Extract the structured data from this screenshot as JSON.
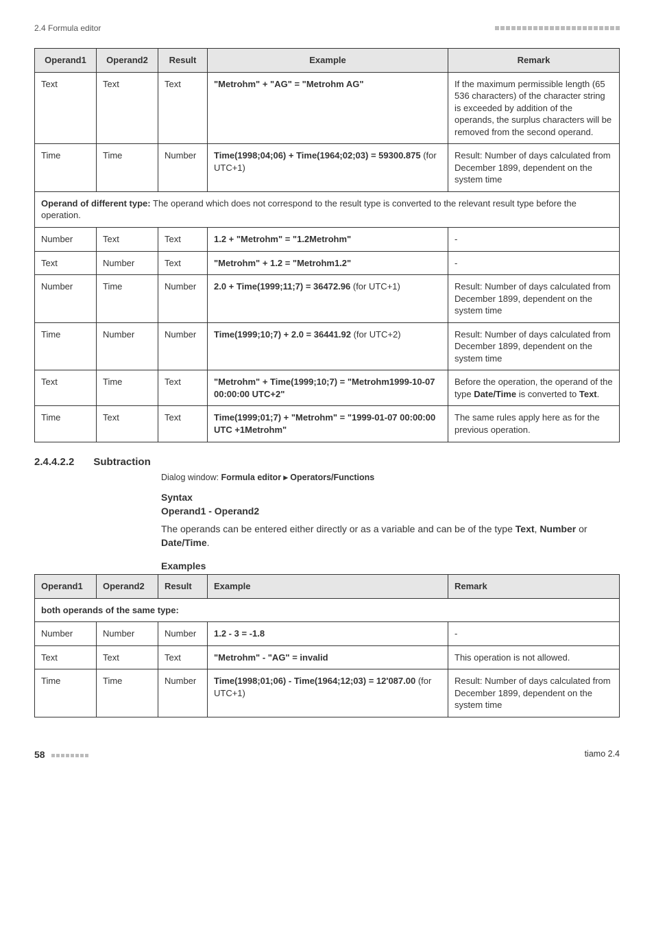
{
  "header": {
    "section_label": "2.4 Formula editor",
    "dot_count": 23
  },
  "table1": {
    "cols": {
      "c1": "Operand1",
      "c2": "Operand2",
      "c3": "Result",
      "c4": "Example",
      "c5": "Remark"
    },
    "col_widths": [
      "90px",
      "90px",
      "72px",
      "auto",
      "250px"
    ],
    "rows": [
      {
        "op1": "Text",
        "op2": "Text",
        "res": "Text",
        "example_html": "<b>\"Metrohm\" + \"AG\" = \"Metrohm AG\"</b>",
        "remark": "If the maximum permissible length (65 536 characters) of the character string is exceeded by addition of the operands, the surplus characters will be removed from the second operand."
      },
      {
        "op1": "Time",
        "op2": "Time",
        "res": "Number",
        "example_html": "<b>Time(1998;04;06) + Time(1964;02;03) = 59300.875</b> (for UTC+1)",
        "remark": "Result: Number of days calculated from December 1899, dependent on the system time"
      }
    ],
    "span_row_html": "<b>Operand of different type:</b> The operand which does not correspond to the result type is converted to the relevant result type before the operation.",
    "rows2": [
      {
        "op1": "Number",
        "op2": "Text",
        "res": "Text",
        "example_html": "<b>1.2 + \"Metrohm\" = \"1.2Metrohm\"</b>",
        "remark": "-"
      },
      {
        "op1": "Text",
        "op2": "Number",
        "res": "Text",
        "example_html": "<b>\"Metrohm\" + 1.2 = \"Metrohm1.2\"</b>",
        "remark": "-"
      },
      {
        "op1": "Number",
        "op2": "Time",
        "res": "Number",
        "example_html": "<b>2.0 + Time(1999;11;7) = 36472.96</b> (for UTC+1)",
        "remark": "Result: Number of days calculated from December 1899, dependent on the system time"
      },
      {
        "op1": "Time",
        "op2": "Number",
        "res": "Number",
        "example_html": "<b>Time(1999;10;7) + 2.0 = 36441.92</b> (for UTC+2)",
        "remark": "Result: Number of days calculated from December 1899, dependent on the system time"
      },
      {
        "op1": "Text",
        "op2": "Time",
        "res": "Text",
        "example_html": "<b>\"Metrohm\" + Time(1999;10;7) = \"Metrohm1999-10-07 00:00:00 UTC+2\"</b>",
        "remark_html": "Before the operation, the operand of the type <b>Date/Time</b> is converted to <b>Text</b>."
      },
      {
        "op1": "Time",
        "op2": "Text",
        "res": "Text",
        "example_html": "<b>Time(1999;01;7) + \"Metrohm\" = \"1999-01-07 00:00:00 UTC +1Metrohm\"</b>",
        "remark": "The same rules apply here as for the previous operation."
      }
    ]
  },
  "section": {
    "number": "2.4.4.2.2",
    "title": "Subtraction",
    "dialog_prefix": "Dialog window: ",
    "dialog_bold": "Formula editor ▸ Operators/Functions",
    "syntax_label": "Syntax",
    "operand_line": "Operand1 - Operand2",
    "para_html": "The operands can be entered either directly or as a variable and can be of the type <b>Text</b>, <b>Number</b> or <b>Date/Time</b>.",
    "examples_label": "Examples"
  },
  "table2": {
    "cols": {
      "c1": "Operand1",
      "c2": "Operand2",
      "c3": "Result",
      "c4": "Example",
      "c5": "Remark"
    },
    "col_widths": [
      "90px",
      "90px",
      "72px",
      "auto",
      "250px"
    ],
    "span_row": "both operands of the same type:",
    "rows": [
      {
        "op1": "Number",
        "op2": "Number",
        "res": "Number",
        "example_html": "<b>1.2 - 3 = -1.8</b>",
        "remark": "-"
      },
      {
        "op1": "Text",
        "op2": "Text",
        "res": "Text",
        "example_html": "<b>\"Metrohm\" - \"AG\" = invalid</b>",
        "remark": "This operation is not allowed."
      },
      {
        "op1": "Time",
        "op2": "Time",
        "res": "Number",
        "example_html": "<b>Time(1998;01;06) - Time(1964;12;03) = 12'087.00</b> (for UTC+1)",
        "remark": "Result: Number of days calculated from December 1899, dependent on the system time"
      }
    ]
  },
  "footer": {
    "page": "58",
    "dot_count": 8,
    "product": "tiamo 2.4"
  }
}
